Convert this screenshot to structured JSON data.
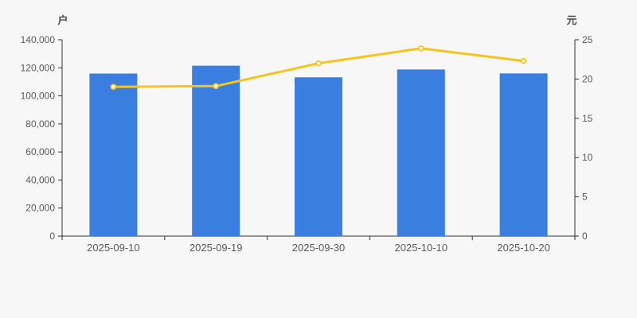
{
  "page": {
    "background": "#f7f7f7"
  },
  "chart_data": {
    "type": "bar",
    "title": "",
    "categories": [
      "2025-09-10",
      "2025-09-19",
      "2025-09-30",
      "2025-10-10",
      "2025-10-20"
    ],
    "series": [
      {
        "id": "holder-count-bars",
        "type": "bar",
        "axis": "left",
        "color": "#3a7fe0",
        "values": [
          115900,
          121500,
          113200,
          118800,
          116000
        ]
      },
      {
        "id": "price-line",
        "type": "line",
        "axis": "right",
        "color": "#f3c51d",
        "marker_fill": "#ffffff",
        "values": [
          19.0,
          19.1,
          22.0,
          23.9,
          22.3
        ]
      }
    ],
    "left_axis": {
      "name": "户",
      "min": 0,
      "max": 140000,
      "tick_step": 20000,
      "tick_labels": [
        "0",
        "20,000",
        "40,000",
        "60,000",
        "80,000",
        "100,000",
        "120,000",
        "140,000"
      ]
    },
    "right_axis": {
      "name": "元",
      "min": 0,
      "max": 25,
      "tick_step": 5,
      "tick_labels": [
        "0",
        "5",
        "10",
        "15",
        "20",
        "25"
      ]
    },
    "axis_color": "#333333",
    "label_color": "#595959",
    "grid": false,
    "legend_position": "none"
  }
}
